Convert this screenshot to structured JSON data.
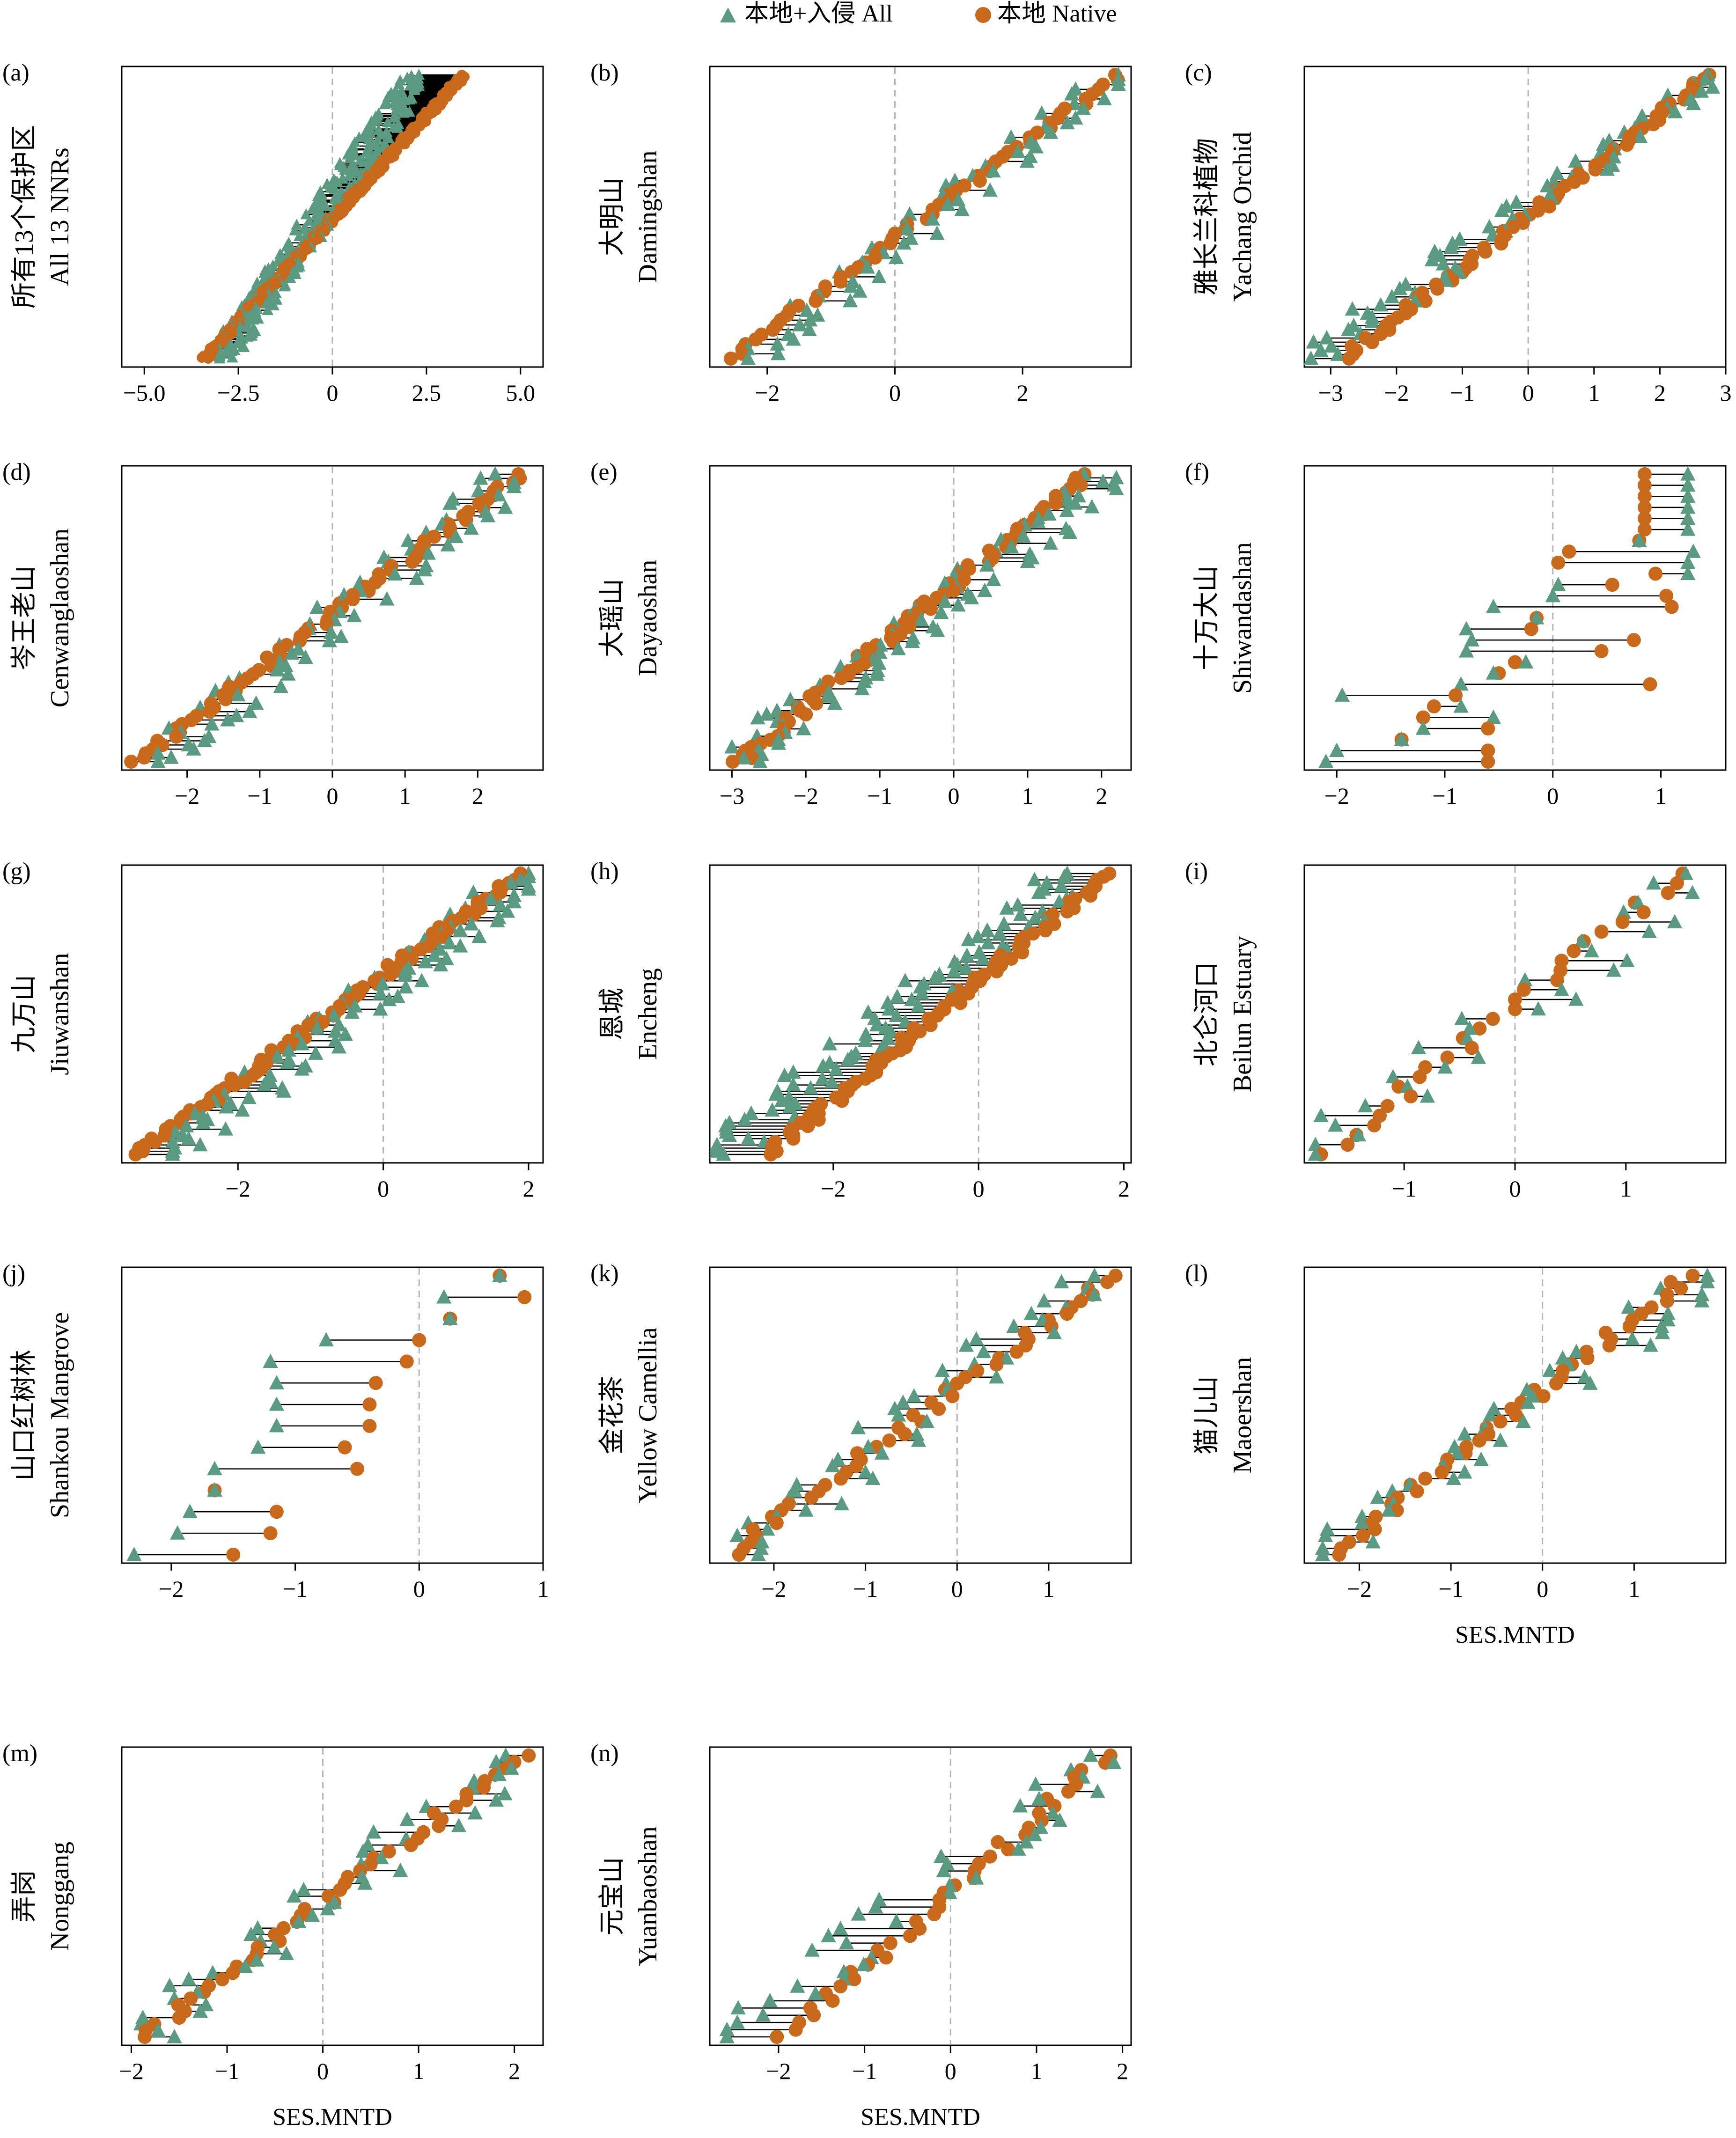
{
  "legend": {
    "items": [
      {
        "label": "本地+入侵 All",
        "shape": "triangle",
        "color": "#5b9a82"
      },
      {
        "label": "本地 Native",
        "shape": "circle",
        "color": "#c8691b"
      }
    ]
  },
  "colors": {
    "all": "#5b9a82",
    "native": "#c8691b",
    "segment": "#000000",
    "zero_line": "#b4b4b4"
  },
  "chart_data": [
    {
      "id": "a",
      "type": "dumbbell",
      "tag": "(a)",
      "ylabel": [
        "所有13个保护区",
        "All 13 NNRs"
      ],
      "xlabel": "",
      "xlim": [
        -5.6,
        5.6
      ],
      "ticks": [
        {
          "value": -5.0,
          "label": "−5.0"
        },
        {
          "value": -2.5,
          "label": "−2.5"
        },
        {
          "value": 0,
          "label": "0"
        },
        {
          "value": 2.5,
          "label": "2.5"
        },
        {
          "value": 5.0,
          "label": "5.0"
        }
      ],
      "pairs_summary": {
        "n": 300,
        "all_range": [
          -3.0,
          2.3
        ],
        "native_range": [
          -3.4,
          3.5
        ]
      }
    },
    {
      "id": "b",
      "type": "dumbbell",
      "tag": "(b)",
      "ylabel": [
        "大明山",
        "Damingshan"
      ],
      "xlabel": "",
      "xlim": [
        -2.9,
        3.7
      ],
      "ticks": [
        {
          "value": -2,
          "label": "−2"
        },
        {
          "value": 0,
          "label": "0"
        },
        {
          "value": 2,
          "label": "2"
        }
      ],
      "pairs_summary": {
        "n": 60,
        "all_range": [
          -2.3,
          3.5
        ],
        "native_range": [
          -2.6,
          3.5
        ]
      }
    },
    {
      "id": "c",
      "type": "dumbbell",
      "tag": "(c)",
      "ylabel": [
        "雅长兰科植物",
        "Yachang Orchid"
      ],
      "xlabel": "",
      "xlim": [
        -3.4,
        3.0
      ],
      "ticks": [
        {
          "value": -3,
          "label": "−3"
        },
        {
          "value": -2,
          "label": "−2"
        },
        {
          "value": -1,
          "label": "−1"
        },
        {
          "value": 0,
          "label": "0"
        },
        {
          "value": 1,
          "label": "1"
        },
        {
          "value": 2,
          "label": "2"
        },
        {
          "value": 3,
          "label": "3"
        }
      ],
      "pairs_summary": {
        "n": 70,
        "all_range": [
          -3.3,
          2.8
        ],
        "native_range": [
          -2.8,
          2.8
        ]
      }
    },
    {
      "id": "d",
      "type": "dumbbell",
      "tag": "(d)",
      "ylabel": [
        "岑王老山",
        "Cenwanglaoshan"
      ],
      "xlabel": "",
      "xlim": [
        -2.9,
        2.9
      ],
      "ticks": [
        {
          "value": -2,
          "label": "−2"
        },
        {
          "value": -1,
          "label": "−1"
        },
        {
          "value": 0,
          "label": "0"
        },
        {
          "value": 1,
          "label": "1"
        },
        {
          "value": 2,
          "label": "2"
        }
      ],
      "pairs_summary": {
        "n": 70,
        "all_range": [
          -2.4,
          2.5
        ],
        "native_range": [
          -2.7,
          2.6
        ]
      }
    },
    {
      "id": "e",
      "type": "dumbbell",
      "tag": "(e)",
      "ylabel": [
        "大瑶山",
        "Dayaoshan"
      ],
      "xlabel": "",
      "xlim": [
        -3.3,
        2.4
      ],
      "ticks": [
        {
          "value": -3,
          "label": "−3"
        },
        {
          "value": -2,
          "label": "−2"
        },
        {
          "value": -1,
          "label": "−1"
        },
        {
          "value": 0,
          "label": "0"
        },
        {
          "value": 1,
          "label": "1"
        },
        {
          "value": 2,
          "label": "2"
        }
      ],
      "pairs_summary": {
        "n": 80,
        "all_range": [
          -3.0,
          2.2
        ],
        "native_range": [
          -2.9,
          1.8
        ]
      }
    },
    {
      "id": "f",
      "type": "dumbbell",
      "tag": "(f)",
      "ylabel": [
        "十万大山",
        "Shiwandashan"
      ],
      "xlabel": "",
      "xlim": [
        -2.3,
        1.6
      ],
      "ticks": [
        {
          "value": -2,
          "label": "−2"
        },
        {
          "value": -1,
          "label": "−1"
        },
        {
          "value": 0,
          "label": "0"
        },
        {
          "value": 1,
          "label": "1"
        }
      ],
      "pairs": [
        {
          "all": 1.25,
          "native": 0.85
        },
        {
          "all": 1.25,
          "native": 0.85
        },
        {
          "all": 1.25,
          "native": 0.85
        },
        {
          "all": 1.25,
          "native": 0.85
        },
        {
          "all": 1.25,
          "native": 0.85
        },
        {
          "all": 1.25,
          "native": 0.85
        },
        {
          "all": 0.8,
          "native": 0.8
        },
        {
          "all": 1.3,
          "native": 0.15
        },
        {
          "all": 1.25,
          "native": 0.05
        },
        {
          "all": 1.25,
          "native": 0.95
        },
        {
          "all": 0.05,
          "native": 0.55
        },
        {
          "all": 0.0,
          "native": 1.05
        },
        {
          "all": -0.55,
          "native": 1.1
        },
        {
          "all": -0.15,
          "native": -0.15
        },
        {
          "all": -0.8,
          "native": -0.2
        },
        {
          "all": -0.75,
          "native": 0.75
        },
        {
          "all": -0.8,
          "native": 0.45
        },
        {
          "all": -0.25,
          "native": -0.35
        },
        {
          "all": -0.55,
          "native": -0.5
        },
        {
          "all": -0.85,
          "native": 0.9
        },
        {
          "all": -1.95,
          "native": -0.9
        },
        {
          "all": -0.85,
          "native": -1.1
        },
        {
          "all": -0.55,
          "native": -1.2
        },
        {
          "all": -1.2,
          "native": -0.6
        },
        {
          "all": -1.4,
          "native": -1.4
        },
        {
          "all": -2.0,
          "native": -0.6
        },
        {
          "all": -2.1,
          "native": -0.6
        }
      ]
    },
    {
      "id": "g",
      "type": "dumbbell",
      "tag": "(g)",
      "ylabel": [
        "九万山",
        "Jiuwanshan"
      ],
      "xlabel": "",
      "xlim": [
        -3.6,
        2.2
      ],
      "ticks": [
        {
          "value": -2,
          "label": "−2"
        },
        {
          "value": 0,
          "label": "0"
        },
        {
          "value": 2,
          "label": "2"
        }
      ],
      "pairs_summary": {
        "n": 90,
        "all_range": [
          -2.9,
          2.0
        ],
        "native_range": [
          -3.4,
          1.9
        ]
      }
    },
    {
      "id": "h",
      "type": "dumbbell",
      "tag": "(h)",
      "ylabel": [
        "恩城",
        "Encheng"
      ],
      "xlabel": "",
      "xlim": [
        -3.7,
        2.1
      ],
      "ticks": [
        {
          "value": -2,
          "label": "−2"
        },
        {
          "value": 0,
          "label": "0"
        },
        {
          "value": 2,
          "label": "2"
        }
      ],
      "pairs_summary": {
        "n": 90,
        "all_range": [
          -3.6,
          1.3
        ],
        "native_range": [
          -2.9,
          1.8
        ]
      }
    },
    {
      "id": "i",
      "type": "dumbbell",
      "tag": "(i)",
      "ylabel": [
        "北仑河口",
        "Beilun Estuary"
      ],
      "xlabel": "",
      "xlim": [
        -1.9,
        1.9
      ],
      "ticks": [
        {
          "value": -1,
          "label": "−1"
        },
        {
          "value": 0,
          "label": "0"
        },
        {
          "value": 1,
          "label": "1"
        }
      ],
      "pairs_summary": {
        "n": 30,
        "all_range": [
          -1.8,
          1.8
        ],
        "native_range": [
          -1.7,
          1.5
        ]
      }
    },
    {
      "id": "j",
      "type": "dumbbell",
      "tag": "(j)",
      "ylabel": [
        "山口红树林",
        "Shankou Mangrove"
      ],
      "xlabel": "",
      "xlim": [
        -2.4,
        1.0
      ],
      "ticks": [
        {
          "value": -2,
          "label": "−2"
        },
        {
          "value": -1,
          "label": "−1"
        },
        {
          "value": 0,
          "label": "0"
        },
        {
          "value": 1,
          "label": "1"
        }
      ],
      "pairs": [
        {
          "all": 0.65,
          "native": 0.65
        },
        {
          "all": 0.2,
          "native": 0.85
        },
        {
          "all": 0.25,
          "native": 0.25
        },
        {
          "all": -0.75,
          "native": 0.0
        },
        {
          "all": -1.2,
          "native": -0.1
        },
        {
          "all": -1.15,
          "native": -0.35
        },
        {
          "all": -1.15,
          "native": -0.4
        },
        {
          "all": -1.15,
          "native": -0.4
        },
        {
          "all": -1.3,
          "native": -0.6
        },
        {
          "all": -1.65,
          "native": -0.5
        },
        {
          "all": -1.65,
          "native": -1.65
        },
        {
          "all": -1.85,
          "native": -1.15
        },
        {
          "all": -1.95,
          "native": -1.2
        },
        {
          "all": -2.3,
          "native": -1.5
        }
      ]
    },
    {
      "id": "k",
      "type": "dumbbell",
      "tag": "(k)",
      "ylabel": [
        "金花茶",
        "Yellow Camellia"
      ],
      "xlabel": "",
      "xlim": [
        -2.7,
        1.9
      ],
      "ticks": [
        {
          "value": -2,
          "label": "−2"
        },
        {
          "value": -1,
          "label": "−1"
        },
        {
          "value": 0,
          "label": "0"
        },
        {
          "value": 1,
          "label": "1"
        }
      ],
      "pairs_summary": {
        "n": 45,
        "all_range": [
          -2.4,
          1.5
        ],
        "native_range": [
          -2.5,
          1.7
        ]
      }
    },
    {
      "id": "l",
      "type": "dumbbell",
      "tag": "(l)",
      "ylabel": [
        "猫儿山",
        "Maoershan"
      ],
      "xlabel": "SES.MNTD",
      "xlim": [
        -2.6,
        2.0
      ],
      "ticks": [
        {
          "value": -2,
          "label": "−2"
        },
        {
          "value": -1,
          "label": "−1"
        },
        {
          "value": 0,
          "label": "0"
        },
        {
          "value": 1,
          "label": "1"
        }
      ],
      "pairs_summary": {
        "n": 45,
        "all_range": [
          -2.4,
          1.8
        ],
        "native_range": [
          -2.3,
          1.6
        ]
      }
    },
    {
      "id": "m",
      "type": "dumbbell",
      "tag": "(m)",
      "ylabel": [
        "弄岗",
        "Nonggang"
      ],
      "xlabel": "SES.MNTD",
      "xlim": [
        -2.1,
        2.3
      ],
      "ticks": [
        {
          "value": -2,
          "label": "−2"
        },
        {
          "value": -1,
          "label": "−1"
        },
        {
          "value": 0,
          "label": "0"
        },
        {
          "value": 1,
          "label": "1"
        },
        {
          "value": 2,
          "label": "2"
        }
      ],
      "pairs_summary": {
        "n": 45,
        "all_range": [
          -1.9,
          2.0
        ],
        "native_range": [
          -1.9,
          2.1
        ]
      }
    },
    {
      "id": "n",
      "type": "dumbbell",
      "tag": "(n)",
      "ylabel": [
        "元宝山",
        "Yuanbaoshan"
      ],
      "xlabel": "SES.MNTD",
      "xlim": [
        -2.8,
        2.1
      ],
      "ticks": [
        {
          "value": -2,
          "label": "−2"
        },
        {
          "value": -1,
          "label": "−1"
        },
        {
          "value": 0,
          "label": "0"
        },
        {
          "value": 1,
          "label": "1"
        },
        {
          "value": 2,
          "label": "2"
        }
      ],
      "pairs_summary": {
        "n": 40,
        "all_range": [
          -2.6,
          1.9
        ],
        "native_range": [
          -1.9,
          1.8
        ]
      }
    }
  ]
}
